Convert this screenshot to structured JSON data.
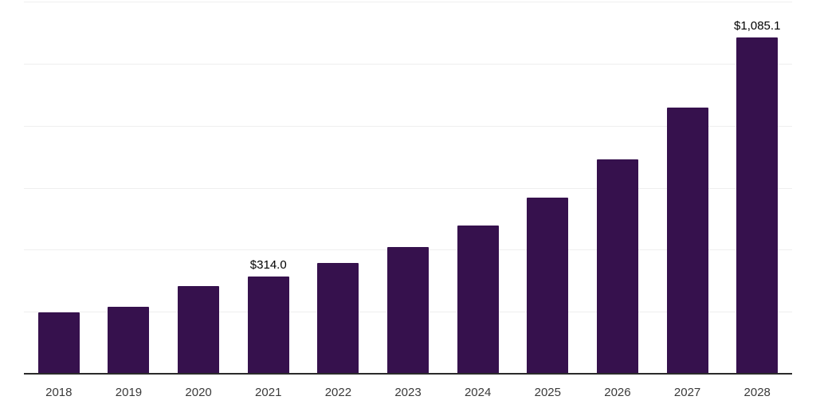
{
  "chart_data": {
    "type": "bar",
    "title": "",
    "xlabel": "",
    "ylabel": "",
    "categories": [
      "2018",
      "2019",
      "2020",
      "2021",
      "2022",
      "2023",
      "2024",
      "2025",
      "2026",
      "2027",
      "2028"
    ],
    "values": [
      197.0,
      215.0,
      282.0,
      314.0,
      356.0,
      408.0,
      477.0,
      569.0,
      690.0,
      858.0,
      1085.1
    ],
    "annotations": [
      "",
      "",
      "",
      "$314.0",
      "",
      "",
      "",
      "",
      "",
      "",
      "$1,085.1"
    ],
    "ylim": [
      0,
      1200
    ],
    "gridlines": [
      200,
      400,
      600,
      800,
      1000,
      1200
    ],
    "grid": true,
    "legend": "none",
    "colors": {
      "bar": "#36114d",
      "axis": "#2b2b2b",
      "gridline": "#efefef",
      "value_label": "#000000",
      "tick_label": "#3a3a3a",
      "background": "#ffffff"
    }
  }
}
